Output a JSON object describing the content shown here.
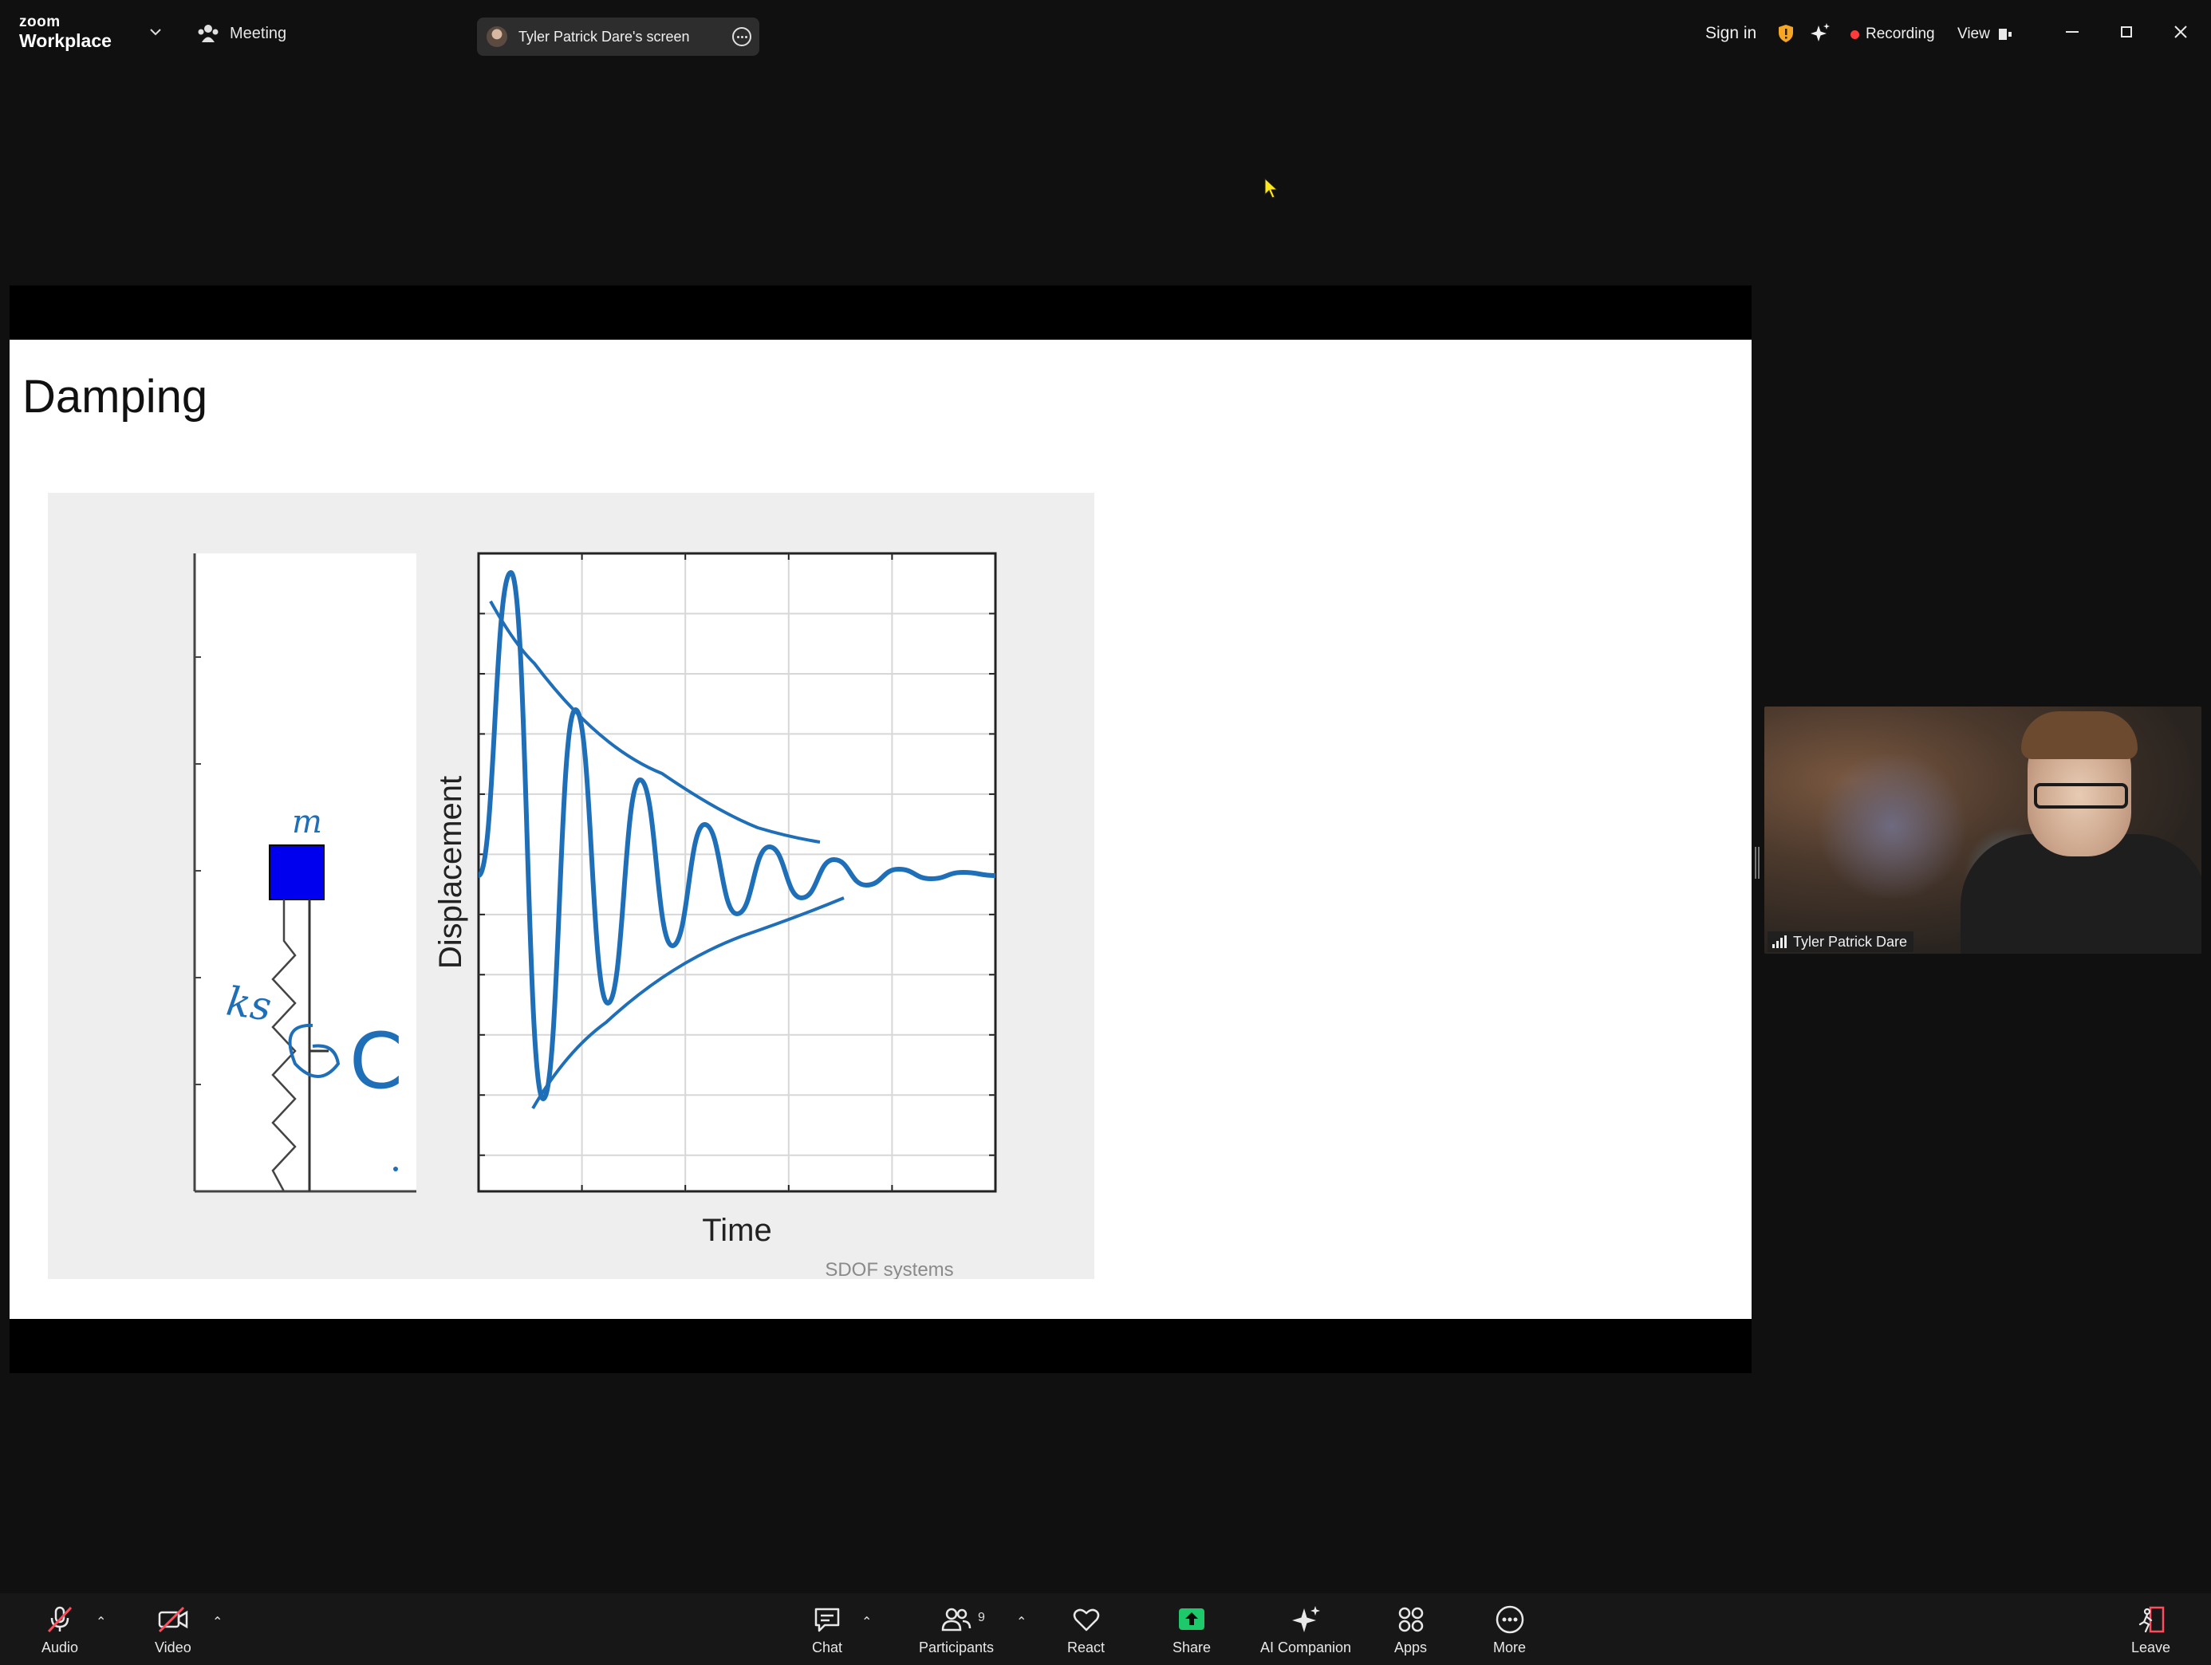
{
  "titlebar": {
    "brand_top": "zoom",
    "brand_bottom": "Workplace",
    "meeting_label": "Meeting",
    "screen_share_label": "Tyler Patrick Dare's screen",
    "sign_in": "Sign in",
    "recording_label": "Recording",
    "view_label": "View",
    "accent_recording": "#ff3b3b",
    "shield_color": "#f5a623"
  },
  "slide": {
    "title": "Damping",
    "figure": {
      "left_panel_annotations": {
        "mass": "m",
        "spring": "ks",
        "damper": "C"
      },
      "ylabel": "Displacement",
      "xlabel": "Time",
      "caption": "SDOF systems",
      "mass_color": "#0000ee",
      "curve_color": "#1f6fb8"
    }
  },
  "chart_data": {
    "type": "line",
    "title": "",
    "xlabel": "Time",
    "ylabel": "Displacement",
    "grid": true,
    "series": [
      {
        "values": [
          0,
          0.95,
          -0.7,
          0.52,
          -0.4,
          0.3,
          -0.22,
          0.16,
          -0.12,
          0.09,
          -0.07,
          0.05,
          -0.03,
          0.02,
          -0.01,
          0.01,
          0
        ]
      }
    ]
  },
  "participant": {
    "name": "Tyler Patrick Dare"
  },
  "toolbar": {
    "audio": "Audio",
    "video": "Video",
    "chat": "Chat",
    "participants": "Participants",
    "participants_count": "9",
    "react": "React",
    "share": "Share",
    "ai_companion": "AI Companion",
    "apps": "Apps",
    "more": "More",
    "leave": "Leave",
    "share_color": "#1ec96b",
    "leave_color": "#ff4d5e"
  }
}
